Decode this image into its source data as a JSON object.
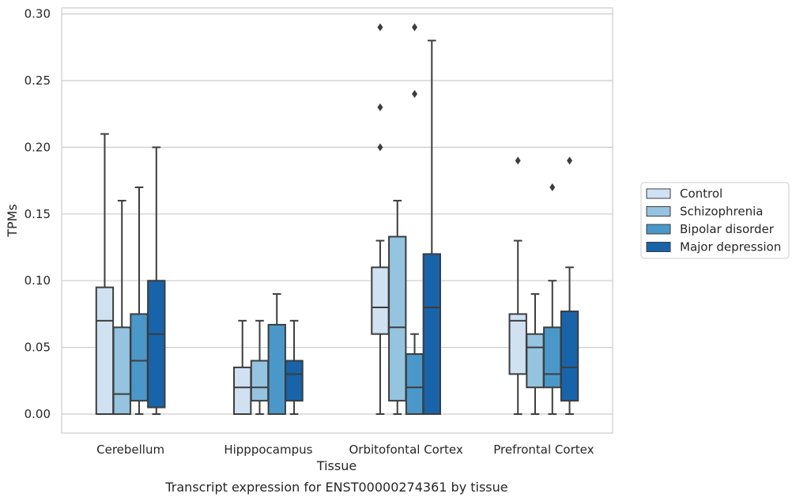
{
  "chart_data": {
    "type": "boxplot",
    "xlabel": "Tissue",
    "ylabel": "TPMs",
    "caption": "Transcript expression for ENST00000274361 by tissue",
    "ylim": [
      -0.014,
      0.305
    ],
    "yticks": [
      "0.00",
      "0.05",
      "0.10",
      "0.15",
      "0.20",
      "0.25",
      "0.30"
    ],
    "ytick_values": [
      0.0,
      0.05,
      0.1,
      0.15,
      0.2,
      0.25,
      0.3
    ],
    "grid": "horizontal",
    "legend_position": "right",
    "categories": [
      "Cerebellum",
      "Hipppocampus",
      "Orbitofontal Cortex",
      "Prefrontal Cortex"
    ],
    "series": [
      {
        "name": "Control",
        "color": "#d0e1f2",
        "boxes": [
          {
            "whislo": 0.0,
            "q1": 0.0,
            "med": 0.07,
            "q3": 0.095,
            "whishi": 0.21,
            "fliers": []
          },
          {
            "whislo": 0.0,
            "q1": 0.0,
            "med": 0.02,
            "q3": 0.035,
            "whishi": 0.07,
            "fliers": []
          },
          {
            "whislo": 0.0,
            "q1": 0.06,
            "med": 0.08,
            "q3": 0.11,
            "whishi": 0.13,
            "fliers": [
              0.2,
              0.23,
              0.29
            ]
          },
          {
            "whislo": 0.0,
            "q1": 0.03,
            "med": 0.07,
            "q3": 0.075,
            "whishi": 0.13,
            "fliers": [
              0.19
            ]
          }
        ]
      },
      {
        "name": "Schizophrenia",
        "color": "#94c4df",
        "boxes": [
          {
            "whislo": 0.0,
            "q1": 0.0,
            "med": 0.015,
            "q3": 0.065,
            "whishi": 0.16,
            "fliers": []
          },
          {
            "whislo": 0.0,
            "q1": 0.01,
            "med": 0.02,
            "q3": 0.04,
            "whishi": 0.07,
            "fliers": []
          },
          {
            "whislo": 0.0,
            "q1": 0.01,
            "med": 0.065,
            "q3": 0.133,
            "whishi": 0.16,
            "fliers": []
          },
          {
            "whislo": 0.0,
            "q1": 0.02,
            "med": 0.05,
            "q3": 0.06,
            "whishi": 0.09,
            "fliers": []
          }
        ]
      },
      {
        "name": "Bipolar disorder",
        "color": "#4a98c9",
        "boxes": [
          {
            "whislo": 0.0,
            "q1": 0.01,
            "med": 0.04,
            "q3": 0.075,
            "whishi": 0.17,
            "fliers": []
          },
          {
            "whislo": 0.0,
            "q1": 0.0,
            "med": 0.0,
            "q3": 0.067,
            "whishi": 0.09,
            "fliers": []
          },
          {
            "whislo": 0.0,
            "q1": 0.0,
            "med": 0.02,
            "q3": 0.045,
            "whishi": 0.06,
            "fliers": [
              0.24,
              0.29
            ]
          },
          {
            "whislo": 0.0,
            "q1": 0.02,
            "med": 0.03,
            "q3": 0.065,
            "whishi": 0.1,
            "fliers": [
              0.17
            ]
          }
        ]
      },
      {
        "name": "Major depression",
        "color": "#1764ab",
        "boxes": [
          {
            "whislo": 0.0,
            "q1": 0.005,
            "med": 0.06,
            "q3": 0.1,
            "whishi": 0.2,
            "fliers": []
          },
          {
            "whislo": 0.0,
            "q1": 0.01,
            "med": 0.03,
            "q3": 0.04,
            "whishi": 0.07,
            "fliers": []
          },
          {
            "whislo": 0.0,
            "q1": 0.0,
            "med": 0.08,
            "q3": 0.12,
            "whishi": 0.28,
            "fliers": []
          },
          {
            "whislo": 0.0,
            "q1": 0.01,
            "med": 0.035,
            "q3": 0.077,
            "whishi": 0.11,
            "fliers": [
              0.19
            ]
          }
        ]
      }
    ]
  }
}
